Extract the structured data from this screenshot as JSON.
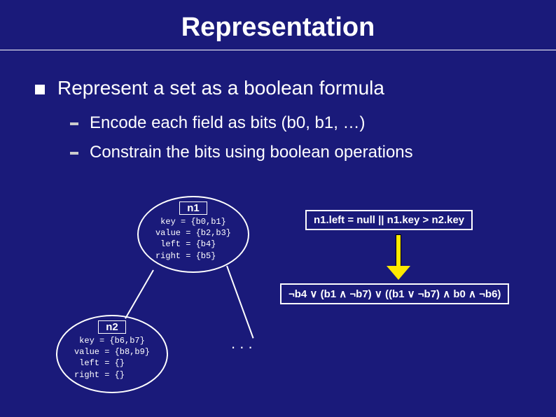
{
  "title": "Representation",
  "bullets": {
    "lvl1": "Represent a set as a boolean formula",
    "lvl2": [
      "Encode each field as bits (b0, b1, …)",
      "Constrain the bits using boolean operations"
    ]
  },
  "nodes": {
    "n1": {
      "label": "n1",
      "fields": " key = {b0,b1}\nvalue = {b2,b3}\n left = {b4}\nright = {b5}"
    },
    "n2": {
      "label": "n2",
      "fields": " key = {b6,b7}\nvalue = {b8,b9}\n left = {}\nright = {}"
    }
  },
  "constraints": {
    "top": "n1.left = null || n1.key > n2.key",
    "bottom": "¬b4 ∨ (b1 ∧ ¬b7) ∨ ((b1 ∨ ¬b7) ∧ b0 ∧ ¬b6)"
  },
  "dots": ". . .",
  "colors": {
    "background": "#1a1a7a",
    "text": "#ffffff",
    "arrow_fill": "#ffea00"
  },
  "fonts": {
    "title_size": 38,
    "lvl1_size": 28,
    "lvl2_size": 24,
    "node_label_size": 15,
    "node_fields_size": 12,
    "constraint_size": 15
  }
}
